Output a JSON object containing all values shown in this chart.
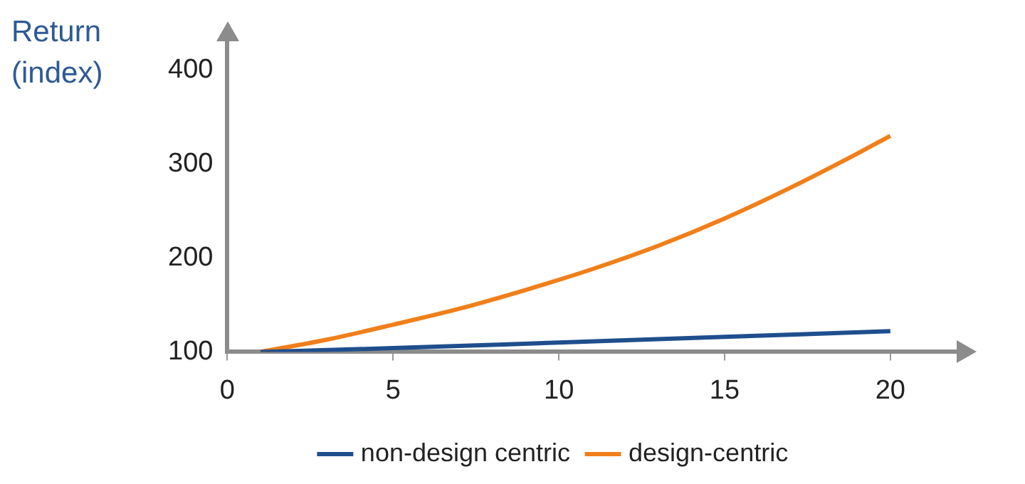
{
  "chart_data": {
    "type": "line",
    "ylabel": "Return (index)",
    "xlim": [
      0,
      22
    ],
    "xticks": [
      0,
      5,
      10,
      15,
      20
    ],
    "ylim": [
      100,
      430
    ],
    "yticks": [
      100,
      200,
      300,
      400
    ],
    "grid": false,
    "legend": "bottom",
    "marker": "none",
    "line_style": "solid",
    "series": [
      {
        "name": "non-design centric",
        "color": "#1f4e8c",
        "x": [
          1,
          5,
          10,
          15,
          20
        ],
        "values": [
          100,
          104,
          110,
          116,
          122
        ]
      },
      {
        "name": "design-centric",
        "color": "#f07f1a",
        "x": [
          1,
          3,
          5,
          7,
          9,
          11,
          13,
          15,
          17,
          19,
          20
        ],
        "values": [
          100,
          113,
          129,
          146,
          166,
          188,
          213,
          242,
          275,
          311,
          330
        ]
      }
    ]
  }
}
